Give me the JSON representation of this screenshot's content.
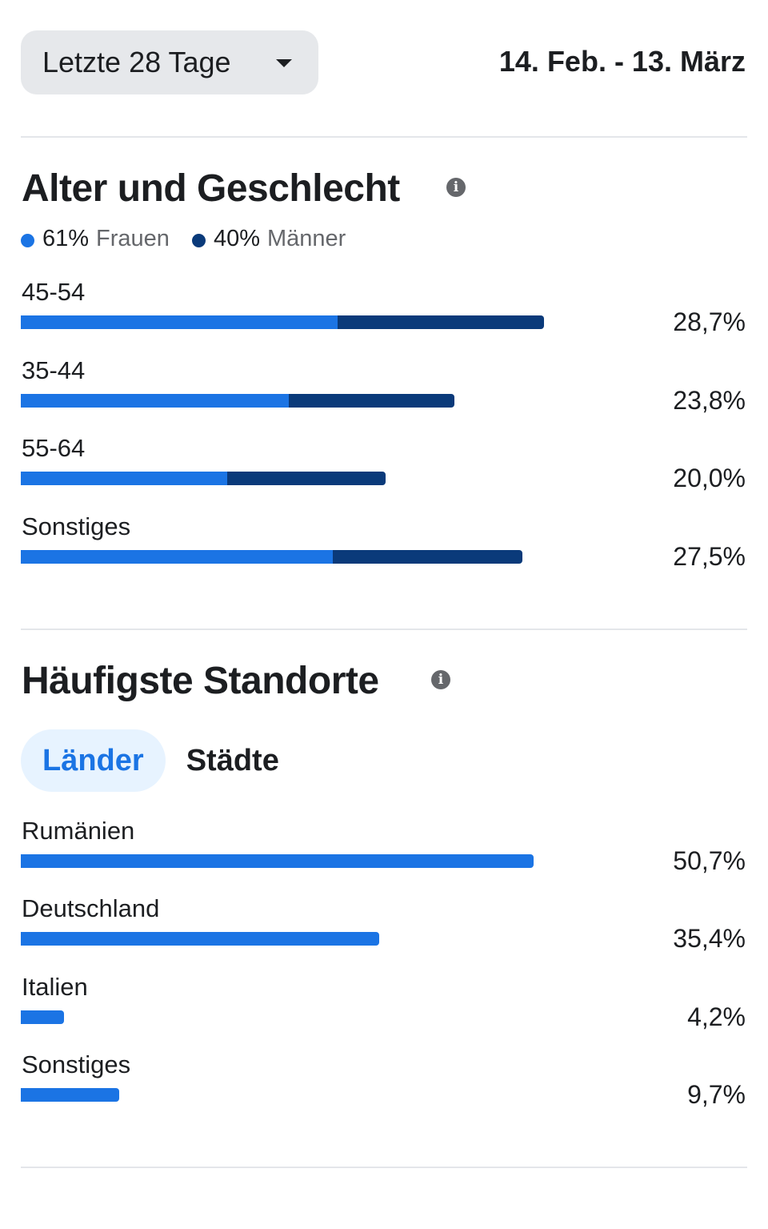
{
  "header": {
    "range_label": "Letzte 28 Tage",
    "date_range": "14. Feb. - 13. März"
  },
  "colors": {
    "female": "#1b74e4",
    "male": "#0a3a7a",
    "accent": "#1b74e4"
  },
  "age_gender": {
    "title": "Alter und Geschlecht",
    "info_icon": "info-icon",
    "legend": [
      {
        "pct": "61%",
        "label": "Frauen"
      },
      {
        "pct": "40%",
        "label": "Männer"
      }
    ],
    "rows": [
      {
        "label": "45-54",
        "total": 28.7,
        "pct_label": "28,7%",
        "female_share": 0.605
      },
      {
        "label": "35-44",
        "total": 23.8,
        "pct_label": "23,8%",
        "female_share": 0.618
      },
      {
        "label": "55-64",
        "total": 20.0,
        "pct_label": "20,0%",
        "female_share": 0.566
      },
      {
        "label": "Sonstiges",
        "total": 27.5,
        "pct_label": "27,5%",
        "female_share": 0.622
      }
    ]
  },
  "locations": {
    "title": "Häufigste Standorte",
    "info_icon": "info-icon",
    "tabs": [
      {
        "label": "Länder",
        "active": true
      },
      {
        "label": "Städte",
        "active": false
      }
    ],
    "rows": [
      {
        "label": "Rumänien",
        "total": 50.7,
        "pct_label": "50,7%"
      },
      {
        "label": "Deutschland",
        "total": 35.4,
        "pct_label": "35,4%"
      },
      {
        "label": "Italien",
        "total": 4.2,
        "pct_label": "4,2%"
      },
      {
        "label": "Sonstiges",
        "total": 9.7,
        "pct_label": "9,7%"
      }
    ]
  }
}
